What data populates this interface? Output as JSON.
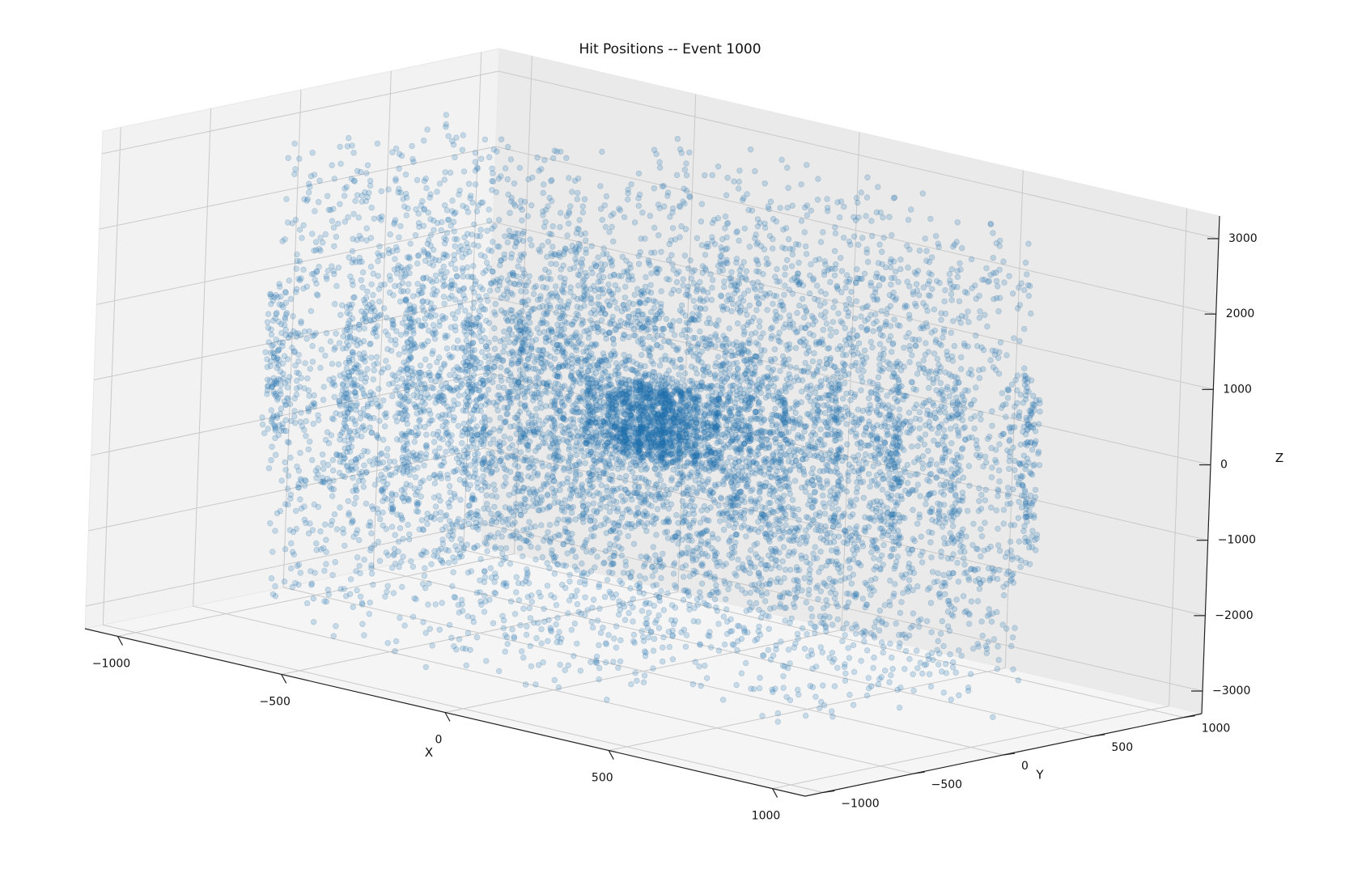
{
  "chart_data": {
    "type": "scatter",
    "subtype": "3d-scatter",
    "title": "Hit Positions -- Event 1000",
    "xlabel": "X",
    "ylabel": "Y",
    "zlabel": "Z",
    "xlim": [
      -1100,
      1100
    ],
    "ylim": [
      -1100,
      1100
    ],
    "zlim": [
      -3300,
      3300
    ],
    "x_ticks": [
      -1000,
      -500,
      0,
      500,
      1000
    ],
    "y_ticks": [
      -1000,
      -500,
      0,
      500,
      1000
    ],
    "z_ticks": [
      -3000,
      -2000,
      -1000,
      0,
      1000,
      2000,
      3000
    ],
    "x_tick_labels": [
      "−1000",
      "−500",
      "0",
      "500",
      "1000"
    ],
    "y_tick_labels": [
      "−1000",
      "−500",
      "0",
      "500",
      "1000"
    ],
    "z_tick_labels": [
      "−3000",
      "−2000",
      "−1000",
      "0",
      "1000",
      "2000",
      "3000"
    ],
    "grid": true,
    "marker_color": "#1f77b4",
    "marker_alpha": 0.22,
    "series": [
      {
        "structure": "barrel-layers",
        "layers": [
          {
            "radius": 35,
            "z_half_length": 480
          },
          {
            "radius": 75,
            "z_half_length": 480
          },
          {
            "radius": 120,
            "z_half_length": 480
          },
          {
            "radius": 175,
            "z_half_length": 480
          },
          {
            "radius": 260,
            "z_half_length": 1080
          },
          {
            "radius": 360,
            "z_half_length": 1080
          },
          {
            "radius": 500,
            "z_half_length": 1080
          },
          {
            "radius": 660,
            "z_half_length": 1080
          },
          {
            "radius": 820,
            "z_half_length": 1080
          },
          {
            "radius": 1020,
            "z_half_length": 1080
          }
        ],
        "endcap_z_range": [
          1100,
          2950
        ],
        "endcap_radius_range": [
          40,
          1020
        ]
      }
    ]
  }
}
